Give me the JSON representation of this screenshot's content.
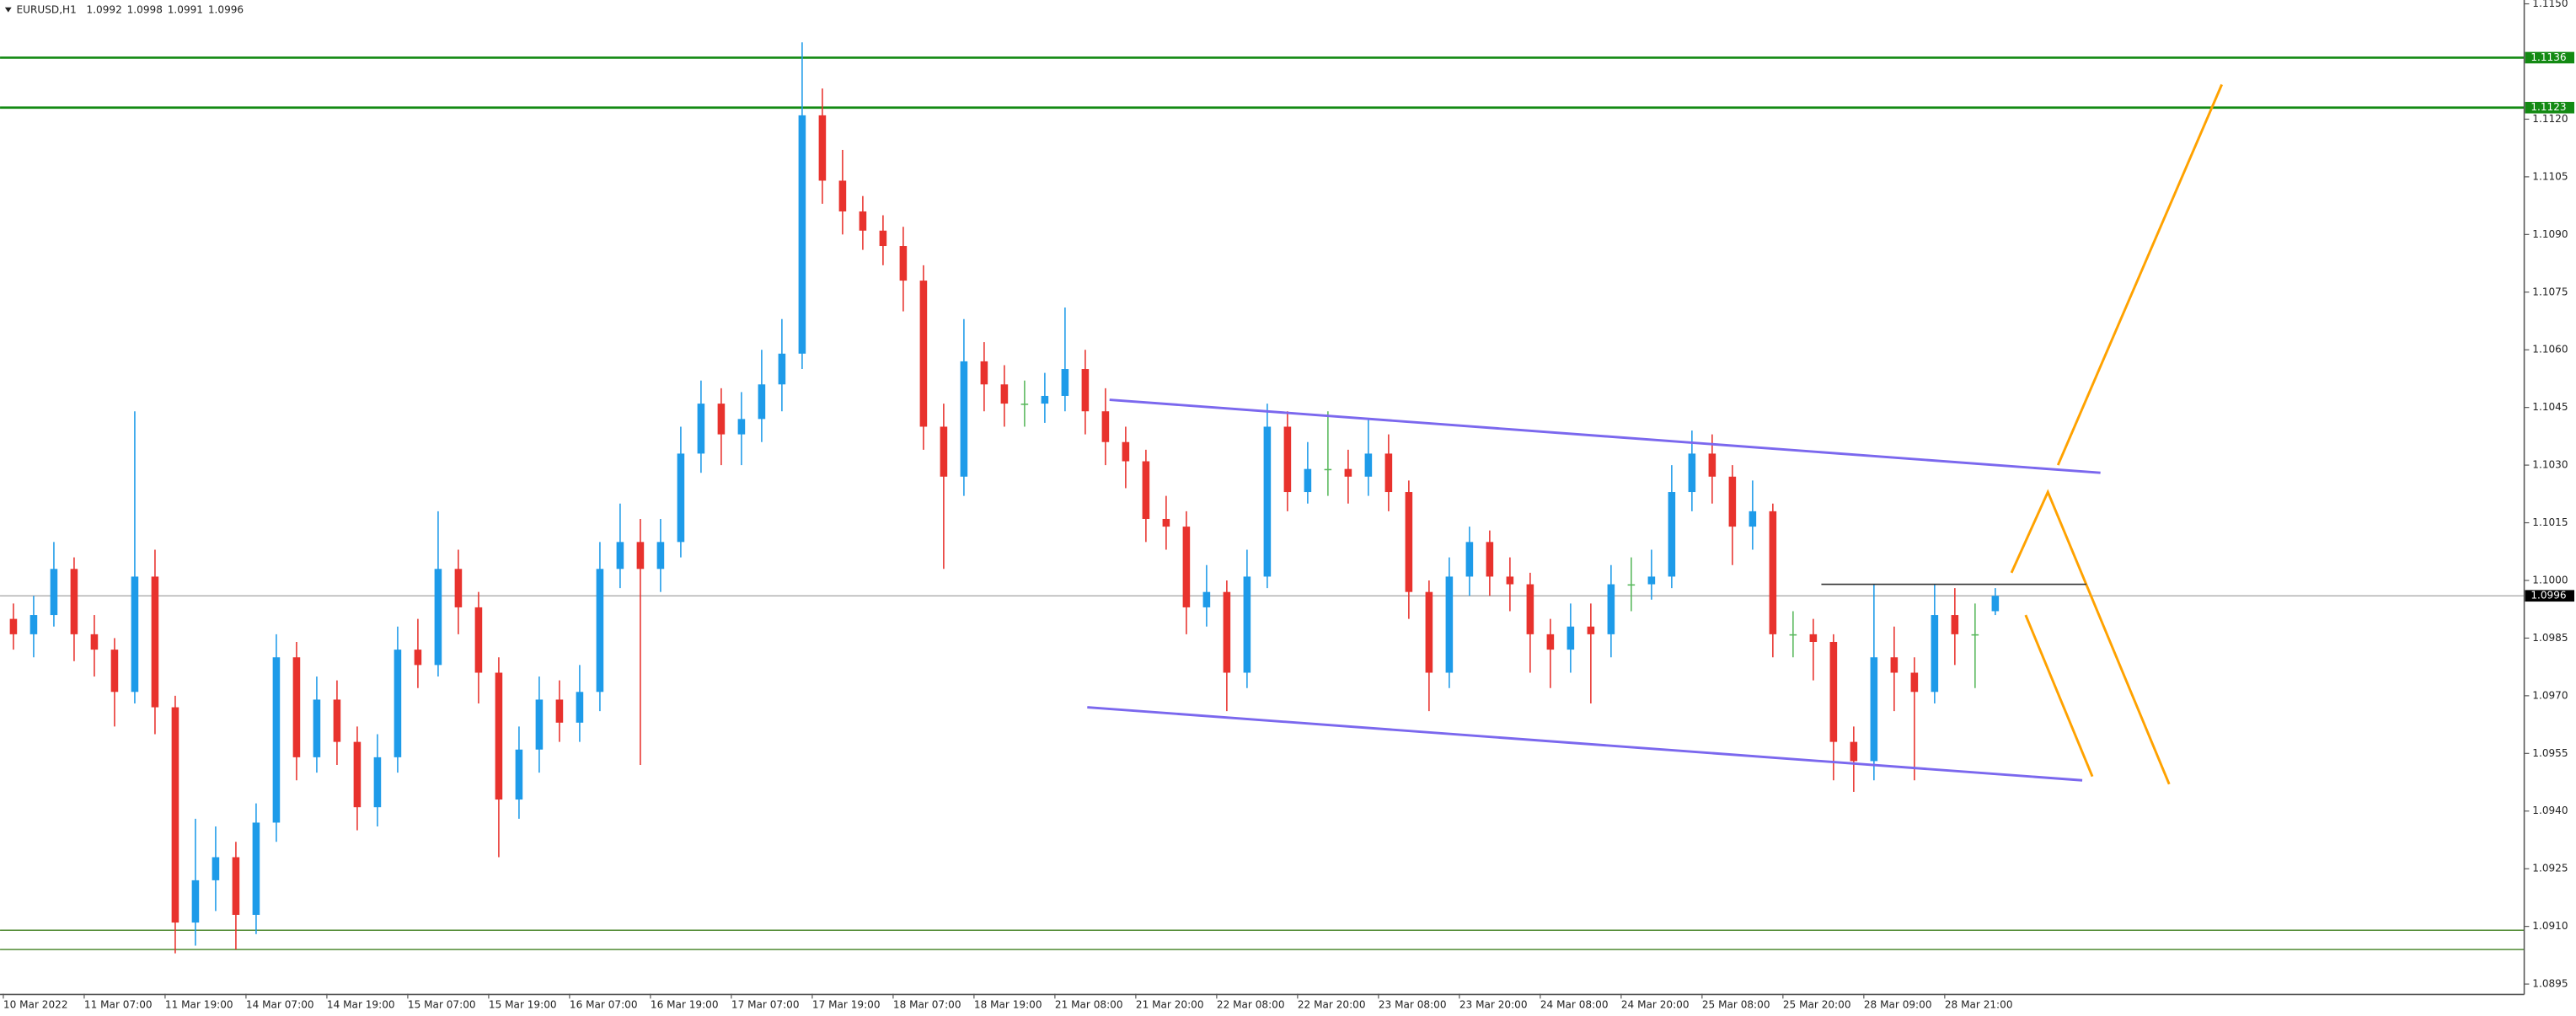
{
  "chart_data": {
    "type": "candlestick",
    "symbol": "EURUSD,H1",
    "header_ohlc": [
      1.0992,
      1.0998,
      1.0991,
      1.0996
    ],
    "categories": [
      "10 Mar 2022",
      null,
      null,
      null,
      "11 Mar 07:00",
      null,
      null,
      null,
      "11 Mar 19:00",
      null,
      null,
      null,
      "14 Mar 07:00",
      null,
      null,
      null,
      "14 Mar 19:00",
      null,
      null,
      null,
      "15 Mar 07:00",
      null,
      null,
      null,
      "15 Mar 19:00",
      null,
      null,
      null,
      "16 Mar 07:00",
      null,
      null,
      null,
      "16 Mar 19:00",
      null,
      null,
      null,
      "17 Mar 07:00",
      null,
      null,
      null,
      "17 Mar 19:00",
      null,
      null,
      null,
      "18 Mar 07:00",
      null,
      null,
      null,
      "18 Mar 19:00",
      null,
      null,
      null,
      "21 Mar 08:00",
      null,
      null,
      null,
      "21 Mar 20:00",
      null,
      null,
      null,
      "22 Mar 08:00",
      null,
      null,
      null,
      "22 Mar 20:00",
      null,
      null,
      null,
      "23 Mar 08:00",
      null,
      null,
      null,
      "23 Mar 20:00",
      null,
      null,
      null,
      "24 Mar 08:00",
      null,
      null,
      null,
      "24 Mar 20:00",
      null,
      null,
      null,
      "25 Mar 08:00",
      null,
      null,
      null,
      "25 Mar 20:00",
      null,
      null,
      null,
      "28 Mar 09:00",
      null,
      null,
      null,
      "28 Mar 21:00",
      null,
      null
    ],
    "open": [
      1.099,
      1.0986,
      1.0991,
      1.1003,
      1.0986,
      1.0982,
      1.0971,
      1.1001,
      1.0967,
      1.0911,
      1.0922,
      1.0928,
      1.0913,
      1.0937,
      1.098,
      1.0954,
      1.0969,
      1.0958,
      1.0941,
      1.0954,
      1.0982,
      1.0978,
      1.1003,
      1.0993,
      1.0976,
      1.0943,
      1.0956,
      1.0969,
      1.0963,
      1.0971,
      1.1003,
      1.101,
      1.1003,
      1.101,
      1.1033,
      1.1046,
      1.1038,
      1.1042,
      1.1051,
      1.1059,
      1.1121,
      1.1104,
      1.1096,
      1.1091,
      1.1087,
      1.1078,
      1.104,
      1.1027,
      1.1057,
      1.1051,
      1.1046,
      1.1046,
      1.1048,
      1.1055,
      1.1044,
      1.1036,
      1.1031,
      1.1016,
      1.1014,
      1.0993,
      1.0997,
      1.0976,
      1.1001,
      1.104,
      1.1023,
      1.1029,
      1.1029,
      1.1027,
      1.1033,
      1.1023,
      1.0997,
      1.0976,
      1.1001,
      1.101,
      1.1001,
      1.0999,
      1.0986,
      1.0982,
      1.0988,
      1.0986,
      1.0999,
      1.0999,
      1.1001,
      1.1023,
      1.1033,
      1.1027,
      1.1014,
      1.1018,
      1.0986,
      1.0986,
      1.0984,
      1.0958,
      1.0953,
      1.098,
      1.0976,
      1.0971,
      1.0991,
      1.0986,
      1.0992
    ],
    "high": [
      1.0994,
      1.0996,
      1.101,
      1.1006,
      1.0991,
      1.0985,
      1.1044,
      1.1008,
      1.097,
      1.0938,
      1.0936,
      1.0932,
      1.0942,
      1.0986,
      1.0984,
      1.0975,
      1.0974,
      1.0962,
      1.096,
      1.0988,
      1.099,
      1.1018,
      1.1008,
      1.0997,
      1.098,
      1.0962,
      1.0975,
      1.0974,
      1.0978,
      1.101,
      1.102,
      1.1016,
      1.1016,
      1.104,
      1.1052,
      1.105,
      1.1049,
      1.106,
      1.1068,
      1.114,
      1.1128,
      1.1112,
      1.11,
      1.1095,
      1.1092,
      1.1082,
      1.1046,
      1.1068,
      1.1062,
      1.1056,
      1.1052,
      1.1054,
      1.1071,
      1.106,
      1.105,
      1.104,
      1.1034,
      1.1022,
      1.1018,
      1.1004,
      1.1,
      1.1008,
      1.1046,
      1.1044,
      1.1036,
      1.1044,
      1.1034,
      1.1042,
      1.1038,
      1.1026,
      1.1,
      1.1006,
      1.1014,
      1.1013,
      1.1006,
      1.1002,
      1.099,
      1.0994,
      1.0994,
      1.1004,
      1.1006,
      1.1008,
      1.103,
      1.1039,
      1.1038,
      1.103,
      1.1026,
      1.102,
      1.0992,
      1.099,
      1.0986,
      1.0962,
      1.0999,
      1.0988,
      1.098,
      1.0999,
      1.0998,
      1.0994,
      1.0998
    ],
    "low": [
      1.0982,
      1.098,
      1.0988,
      1.0979,
      1.0975,
      1.0962,
      1.0968,
      1.096,
      1.0903,
      1.0905,
      1.0914,
      1.0904,
      1.0908,
      1.0932,
      1.0948,
      1.095,
      1.0952,
      1.0935,
      1.0936,
      1.095,
      1.0972,
      1.0975,
      1.0986,
      1.0968,
      1.0928,
      1.0938,
      1.095,
      1.0958,
      1.0958,
      1.0966,
      1.0998,
      1.0952,
      1.0997,
      1.1006,
      1.1028,
      1.103,
      1.103,
      1.1036,
      1.1044,
      1.1055,
      1.1098,
      1.109,
      1.1086,
      1.1082,
      1.107,
      1.1034,
      1.1003,
      1.1022,
      1.1044,
      1.104,
      1.104,
      1.1041,
      1.1044,
      1.1038,
      1.103,
      1.1024,
      1.101,
      1.1008,
      1.0986,
      1.0988,
      1.0966,
      1.0972,
      1.0998,
      1.1018,
      1.102,
      1.1022,
      1.102,
      1.1022,
      1.1018,
      1.099,
      1.0966,
      1.0972,
      1.0996,
      1.0996,
      1.0992,
      1.0976,
      1.0972,
      1.0976,
      1.0968,
      1.098,
      1.0992,
      1.0995,
      1.0998,
      1.1018,
      1.102,
      1.1004,
      1.1008,
      1.098,
      1.098,
      1.0974,
      1.0948,
      1.0945,
      1.0948,
      1.0966,
      1.0948,
      1.0968,
      1.0978,
      1.0972,
      1.0991
    ],
    "close": [
      1.0986,
      1.0991,
      1.1003,
      1.0986,
      1.0982,
      1.0971,
      1.1001,
      1.0967,
      1.0911,
      1.0922,
      1.0928,
      1.0913,
      1.0937,
      1.098,
      1.0954,
      1.0969,
      1.0958,
      1.0941,
      1.0954,
      1.0982,
      1.0978,
      1.1003,
      1.0993,
      1.0976,
      1.0943,
      1.0956,
      1.0969,
      1.0963,
      1.0971,
      1.1003,
      1.101,
      1.1003,
      1.101,
      1.1033,
      1.1046,
      1.1038,
      1.1042,
      1.1051,
      1.1059,
      1.1121,
      1.1104,
      1.1096,
      1.1091,
      1.1087,
      1.1078,
      1.104,
      1.1027,
      1.1057,
      1.1051,
      1.1046,
      1.1046,
      1.1048,
      1.1055,
      1.1044,
      1.1036,
      1.1031,
      1.1016,
      1.1014,
      1.0993,
      1.0997,
      1.0976,
      1.1001,
      1.104,
      1.1023,
      1.1029,
      1.1029,
      1.1027,
      1.1033,
      1.1023,
      1.0997,
      1.0976,
      1.1001,
      1.101,
      1.1001,
      1.0999,
      1.0986,
      1.0982,
      1.0988,
      1.0986,
      1.0999,
      1.0999,
      1.1001,
      1.1023,
      1.1033,
      1.1027,
      1.1014,
      1.1018,
      1.0986,
      1.0986,
      1.0984,
      1.0958,
      1.0953,
      1.098,
      1.0976,
      1.0971,
      1.0991,
      1.0986,
      1.0986,
      1.0996
    ],
    "up_color": "#1e9be9",
    "down_color": "#e8322d",
    "doji_color": "#58b85c",
    "ylim": [
      1.08925,
      1.1151
    ],
    "yticks": [
      {
        "value": 1.115,
        "label": "1.1150"
      },
      {
        "value": 1.112,
        "label": "1.1120"
      },
      1.1105,
      {
        "value": 1.109,
        "label": "1.1090"
      },
      1.1075,
      {
        "value": 1.106,
        "label": "1.1060"
      },
      1.1045,
      {
        "value": 1.103,
        "label": "1.1030"
      },
      1.1015,
      {
        "value": 1.1,
        "label": "1.1000"
      },
      1.0985,
      {
        "value": 1.097,
        "label": "1.0970"
      },
      1.0955,
      {
        "value": 1.094,
        "label": "1.0940"
      },
      1.0925,
      {
        "value": 1.091,
        "label": "1.0910"
      },
      1.0895
    ],
    "grid": false,
    "levels": [
      {
        "value": 1.1136,
        "label": "1.1136",
        "color": "#138a13"
      },
      {
        "value": 1.1123,
        "label": "1.1123",
        "color": "#138a13"
      },
      {
        "value": 1.0909,
        "color": "#3f7f1f"
      },
      {
        "value": 1.0904,
        "color": "#3f7f1f"
      }
    ],
    "current_price": {
      "value": 1.0996,
      "label": "1.0996",
      "color": "#a0a0a0"
    },
    "trendlines": [
      {
        "color": "#7b68ee",
        "x": [
          54.2,
          103.2
        ],
        "y": [
          1.1047,
          1.1028
        ]
      },
      {
        "color": "#7b68ee",
        "x": [
          53.1,
          102.3
        ],
        "y": [
          1.0967,
          1.0948
        ]
      },
      {
        "color": "#ffa200",
        "x": [
          101.1,
          109.2
        ],
        "y": [
          1.103,
          1.1129
        ]
      },
      {
        "color": "#ffa200",
        "x": [
          98.8,
          100.6,
          106.6
        ],
        "y": [
          1.1002,
          1.1023,
          1.0947
        ]
      },
      {
        "color": "#ffa200",
        "x": [
          99.5,
          102.8
        ],
        "y": [
          1.0991,
          1.0949
        ]
      },
      {
        "color": "#333333",
        "x": [
          89.4,
          102.5
        ],
        "y": [
          1.0999,
          1.0999
        ]
      }
    ]
  }
}
